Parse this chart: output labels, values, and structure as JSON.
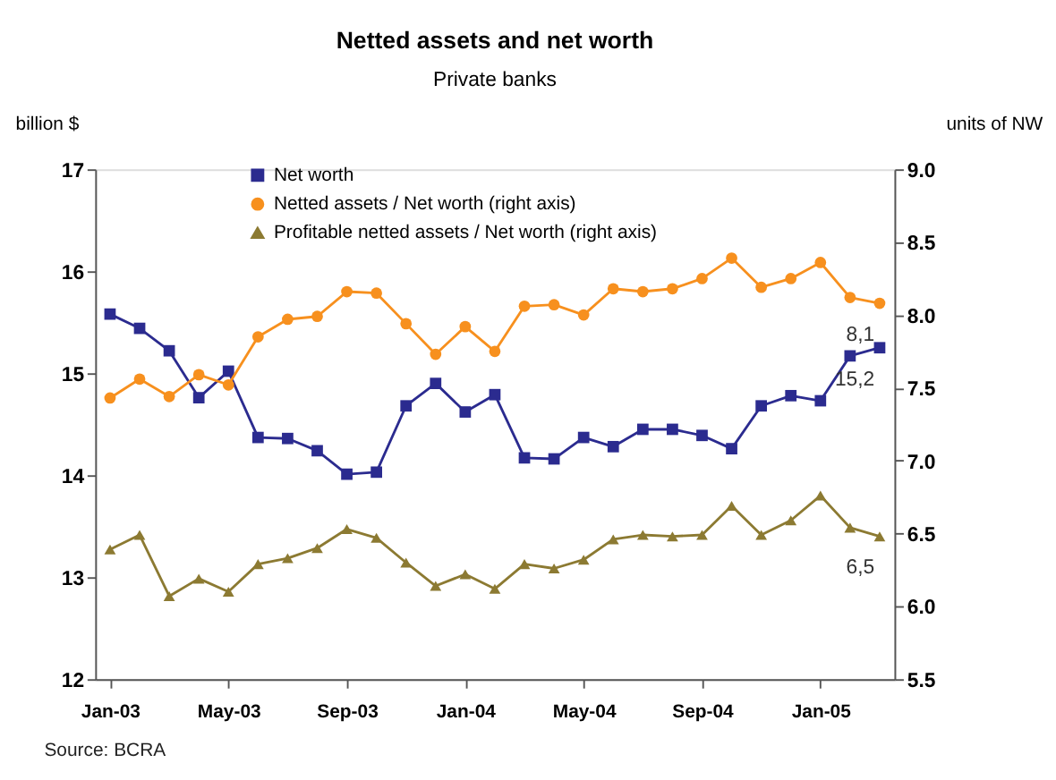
{
  "chart_data": {
    "type": "line",
    "title": "Netted assets and net worth",
    "subtitle": "Private banks",
    "ylabel": "billion $",
    "y2label": "units of NW",
    "categories": [
      "Jan-03",
      null,
      null,
      null,
      "May-03",
      null,
      null,
      null,
      "Sep-03",
      null,
      null,
      null,
      "Jan-04",
      null,
      null,
      null,
      "May-04",
      null,
      null,
      null,
      "Sep-04",
      null,
      null,
      null,
      "Jan-05",
      null,
      null
    ],
    "series": [
      {
        "name": "Net worth",
        "color": "#2b2b8f",
        "marker": "square",
        "values": [
          15.58,
          15.44,
          15.22,
          14.76,
          15.02,
          14.37,
          14.36,
          14.24,
          14.01,
          14.03,
          14.68,
          14.9,
          14.62,
          14.79,
          14.17,
          14.16,
          14.37,
          14.28,
          14.45,
          14.45,
          14.39,
          14.26,
          14.68,
          14.78,
          14.73,
          15.17,
          15.25
        ],
        "value_labels": [
          null,
          null,
          null,
          null,
          null,
          null,
          null,
          null,
          null,
          null,
          null,
          null,
          null,
          null,
          null,
          null,
          null,
          null,
          null,
          null,
          null,
          null,
          null,
          null,
          null,
          null,
          "15,2"
        ]
      },
      {
        "name": "Netted assets / Net worth (right axis)",
        "color": "#f7901e",
        "marker": "circle",
        "axis": "y2",
        "values": [
          7.43,
          7.56,
          7.44,
          7.59,
          7.52,
          7.85,
          7.97,
          7.99,
          8.16,
          8.15,
          7.94,
          7.73,
          7.92,
          7.75,
          8.06,
          8.07,
          8.0,
          8.18,
          8.16,
          8.18,
          8.25,
          8.39,
          8.19,
          8.25,
          8.36,
          8.12,
          8.08
        ],
        "value_labels": [
          null,
          null,
          null,
          null,
          null,
          null,
          null,
          null,
          null,
          null,
          null,
          null,
          null,
          null,
          null,
          null,
          null,
          null,
          null,
          null,
          null,
          null,
          null,
          null,
          null,
          null,
          "8,1"
        ]
      },
      {
        "name": "Profitable netted assets / Net worth (right axis)",
        "color": "#8c7a32",
        "marker": "triangle",
        "axis": "y2",
        "values": [
          6.39,
          6.49,
          6.07,
          6.19,
          6.1,
          6.29,
          6.33,
          6.4,
          6.53,
          6.47,
          6.3,
          6.14,
          6.22,
          6.12,
          6.29,
          6.26,
          6.32,
          6.46,
          6.49,
          6.48,
          6.49,
          6.69,
          6.49,
          6.59,
          6.76,
          6.54,
          6.48
        ],
        "value_labels": [
          null,
          null,
          null,
          null,
          null,
          null,
          null,
          null,
          null,
          null,
          null,
          null,
          null,
          null,
          null,
          null,
          null,
          null,
          null,
          null,
          null,
          null,
          null,
          null,
          null,
          null,
          "6,5"
        ]
      }
    ],
    "ylim": [
      12,
      17
    ],
    "yticks": [
      12,
      13,
      14,
      15,
      16,
      17
    ],
    "y2lim": [
      5.5,
      9.0
    ],
    "y2ticks": [
      {
        "value": 5.5,
        "label": "5.5"
      },
      {
        "value": 6.0,
        "label": "6.0"
      },
      {
        "value": 6.5,
        "label": "6.5"
      },
      {
        "value": 7.0,
        "label": "7.0"
      },
      {
        "value": 7.5,
        "label": "7.5"
      },
      {
        "value": 8.0,
        "label": "8.0"
      },
      {
        "value": 8.5,
        "label": "8.5"
      },
      {
        "value": 9.0,
        "label": "9.0"
      }
    ],
    "grid": false,
    "legend": "top left",
    "line_style": "solid",
    "annotations": [
      "Source: BCRA"
    ]
  }
}
